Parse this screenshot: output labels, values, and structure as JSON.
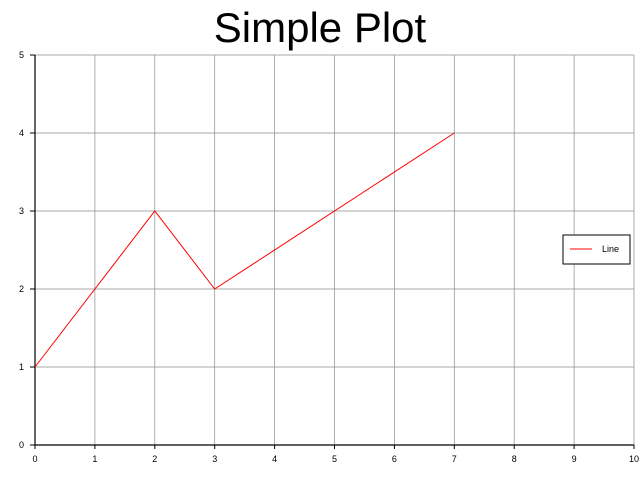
{
  "chart_data": {
    "type": "line",
    "title": "Simple Plot",
    "xlabel": "",
    "ylabel": "",
    "xlim": [
      0,
      10
    ],
    "ylim": [
      0,
      5
    ],
    "xticks": [
      "0",
      "1",
      "2",
      "3",
      "4",
      "5",
      "6",
      "7",
      "8",
      "9",
      "10"
    ],
    "yticks": [
      "0",
      "1",
      "2",
      "3",
      "4",
      "5"
    ],
    "grid": true,
    "legend_position": "right",
    "series": [
      {
        "name": "Line",
        "color": "#ff0000",
        "x": [
          0,
          2,
          3,
          7
        ],
        "y": [
          1,
          3,
          2,
          4
        ]
      }
    ]
  }
}
